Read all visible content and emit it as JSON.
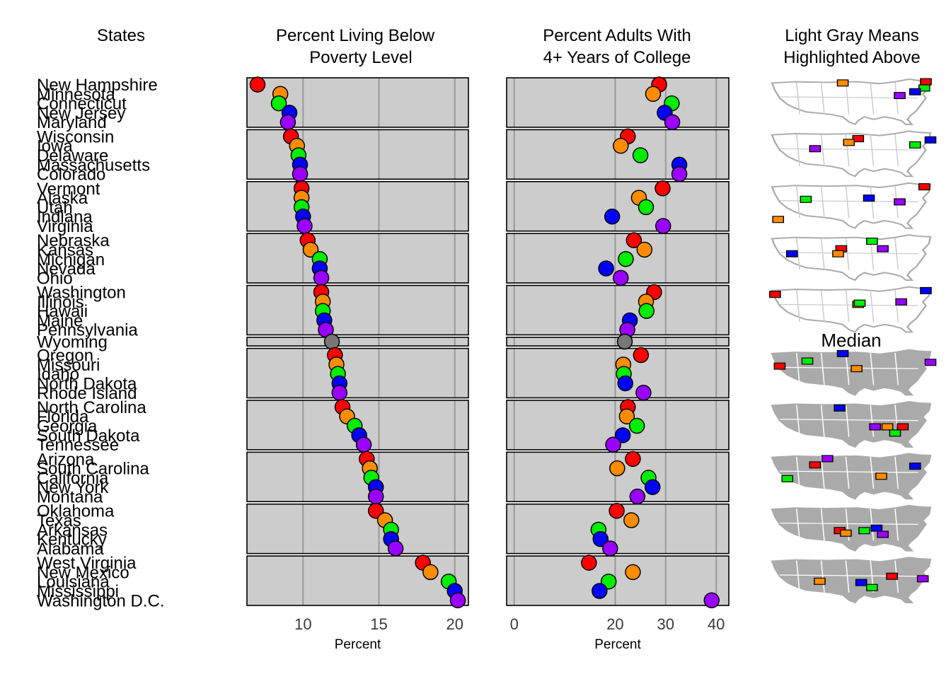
{
  "chart_data": {
    "type": "scatter",
    "headers": {
      "states": "States",
      "poverty": [
        "Percent Living Below",
        "Poverty Level"
      ],
      "college": [
        "Percent Adults With",
        "4+ Years of College"
      ],
      "map": [
        "Light Gray Means",
        "Highlighted Above"
      ]
    },
    "panels": [
      {
        "name": "poverty",
        "xlabel": "Percent",
        "xlim": [
          6.3,
          20.9
        ],
        "ticks": [
          10,
          15,
          20
        ],
        "grid": true
      },
      {
        "name": "college",
        "xlabel": "Percent",
        "xlim": [
          -1.5,
          42.5
        ],
        "ticks": [
          0,
          20,
          30,
          40
        ],
        "grid": true
      }
    ],
    "colors": [
      "#ff0000",
      "#ff8c00",
      "#00ee00",
      "#0000ff",
      "#9a00ff"
    ],
    "median_color": "#777777",
    "median_label": "Median",
    "groups": [
      [
        {
          "state": "New Hampshire",
          "poverty": 7.0,
          "college": 28.7
        },
        {
          "state": "Minnesota",
          "poverty": 8.5,
          "college": 27.5
        },
        {
          "state": "Connecticut",
          "poverty": 8.4,
          "college": 31.2
        },
        {
          "state": "New Jersey",
          "poverty": 9.1,
          "college": 29.8
        },
        {
          "state": "Maryland",
          "poverty": 9.0,
          "college": 31.3
        }
      ],
      [
        {
          "state": "Wisconsin",
          "poverty": 9.2,
          "college": 22.5
        },
        {
          "state": "Iowa",
          "poverty": 9.6,
          "college": 21.1
        },
        {
          "state": "Delaware",
          "poverty": 9.7,
          "college": 25.0
        },
        {
          "state": "Massachusetts",
          "poverty": 9.8,
          "college": 32.7
        },
        {
          "state": "Colorado",
          "poverty": 9.8,
          "college": 32.7
        }
      ],
      [
        {
          "state": "Vermont",
          "poverty": 9.9,
          "college": 29.4
        },
        {
          "state": "Alaska",
          "poverty": 9.9,
          "college": 24.7
        },
        {
          "state": "Utah",
          "poverty": 9.9,
          "college": 26.1
        },
        {
          "state": "Indiana",
          "poverty": 10.0,
          "college": 19.4
        },
        {
          "state": "Virginia",
          "poverty": 10.1,
          "college": 29.5
        }
      ],
      [
        {
          "state": "Nebraska",
          "poverty": 10.3,
          "college": 23.7
        },
        {
          "state": "Kansas",
          "poverty": 10.5,
          "college": 25.8
        },
        {
          "state": "Michigan",
          "poverty": 11.1,
          "college": 22.1
        },
        {
          "state": "Nevada",
          "poverty": 11.1,
          "college": 18.2
        },
        {
          "state": "Ohio",
          "poverty": 11.2,
          "college": 21.1
        }
      ],
      [
        {
          "state": "Washington",
          "poverty": 11.2,
          "college": 27.7
        },
        {
          "state": "Illinois",
          "poverty": 11.3,
          "college": 26.1
        },
        {
          "state": "Hawaii",
          "poverty": 11.3,
          "college": 26.2
        },
        {
          "state": "Maine",
          "poverty": 11.4,
          "college": 22.9
        },
        {
          "state": "Pennsylvania",
          "poverty": 11.5,
          "college": 22.4
        }
      ],
      [
        {
          "state": "Wyoming",
          "poverty": 11.9,
          "college": 21.9
        }
      ],
      [
        {
          "state": "Oregon",
          "poverty": 12.1,
          "college": 25.1
        },
        {
          "state": "Missouri",
          "poverty": 12.2,
          "college": 21.6
        },
        {
          "state": "Idaho",
          "poverty": 12.3,
          "college": 21.7
        },
        {
          "state": "North Dakota",
          "poverty": 12.4,
          "college": 22.0
        },
        {
          "state": "Rhode Island",
          "poverty": 12.4,
          "college": 25.6
        }
      ],
      [
        {
          "state": "North Carolina",
          "poverty": 12.6,
          "college": 22.5
        },
        {
          "state": "Florida",
          "poverty": 12.9,
          "college": 22.3
        },
        {
          "state": "Georgia",
          "poverty": 13.4,
          "college": 24.3
        },
        {
          "state": "South Dakota",
          "poverty": 13.7,
          "college": 21.5
        },
        {
          "state": "Tennessee",
          "poverty": 14.0,
          "college": 19.6
        }
      ],
      [
        {
          "state": "Arizona",
          "poverty": 14.2,
          "college": 23.5
        },
        {
          "state": "South Carolina",
          "poverty": 14.4,
          "college": 20.4
        },
        {
          "state": "California",
          "poverty": 14.5,
          "college": 26.6
        },
        {
          "state": "New York",
          "poverty": 14.8,
          "college": 27.4
        },
        {
          "state": "Montana",
          "poverty": 14.8,
          "college": 24.4
        }
      ],
      [
        {
          "state": "Oklahoma",
          "poverty": 14.8,
          "college": 20.3
        },
        {
          "state": "Texas",
          "poverty": 15.4,
          "college": 23.2
        },
        {
          "state": "Arkansas",
          "poverty": 15.8,
          "college": 16.7
        },
        {
          "state": "Kentucky",
          "poverty": 15.8,
          "college": 17.1
        },
        {
          "state": "Alabama",
          "poverty": 16.1,
          "college": 19.0
        }
      ],
      [
        {
          "state": "West Virginia",
          "poverty": 17.9,
          "college": 14.8
        },
        {
          "state": "New Mexico",
          "poverty": 18.4,
          "college": 23.5
        },
        {
          "state": "Louisiana",
          "poverty": 19.6,
          "college": 18.7
        },
        {
          "state": "Mississippi",
          "poverty": 20.0,
          "college": 16.9
        },
        {
          "state": "Washington D.C.",
          "poverty": 20.2,
          "college": 39.1
        }
      ]
    ]
  }
}
